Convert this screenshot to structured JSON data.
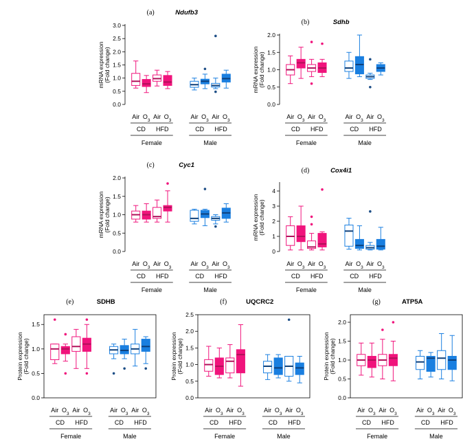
{
  "colors": {
    "female": "#f0147c",
    "male": "#1a7fe0",
    "outlier_male": "#1d4e86"
  },
  "labels": {
    "air": "Air",
    "o3": "O",
    "o3_sub": "3",
    "cd": "CD",
    "hfd": "HFD",
    "female": "Female",
    "male": "Male"
  },
  "chart_data": [
    {
      "type": "box",
      "id": "a",
      "letter": "(a)",
      "title": "Ndufb3",
      "italic": true,
      "ylabel": [
        "mRNA expression",
        "(Fold change)"
      ],
      "ylim": [
        0,
        3.0
      ],
      "yticks": [
        "0.0",
        "0.5",
        "1.0",
        "1.5",
        "2.0",
        "2.5",
        "3.0"
      ],
      "categories": [
        "F CD Air",
        "F CD O3",
        "F HFD Air",
        "F HFD O3",
        "M CD Air",
        "M CD O3",
        "M HFD Air",
        "M HFD O3"
      ],
      "boxes": [
        {
          "min": 0.62,
          "q1": 0.72,
          "median": 0.88,
          "q3": 1.18,
          "max": 1.65,
          "outliers": []
        },
        {
          "min": 0.45,
          "q1": 0.68,
          "median": 0.78,
          "q3": 0.95,
          "max": 1.1,
          "outliers": []
        },
        {
          "min": 0.7,
          "q1": 0.88,
          "median": 0.98,
          "q3": 1.12,
          "max": 1.3,
          "outliers": []
        },
        {
          "min": 0.6,
          "q1": 0.72,
          "median": 0.85,
          "q3": 1.1,
          "max": 1.25,
          "outliers": []
        },
        {
          "min": 0.55,
          "q1": 0.65,
          "median": 0.75,
          "q3": 0.88,
          "max": 1.0,
          "outliers": []
        },
        {
          "min": 0.6,
          "q1": 0.78,
          "median": 0.88,
          "q3": 0.96,
          "max": 1.15,
          "outliers": [
            1.35
          ]
        },
        {
          "min": 0.6,
          "q1": 0.66,
          "median": 0.72,
          "q3": 0.8,
          "max": 1.0,
          "outliers": [
            0.48,
            2.6
          ]
        },
        {
          "min": 0.62,
          "q1": 0.85,
          "median": 0.98,
          "q3": 1.15,
          "max": 1.3,
          "outliers": []
        }
      ]
    },
    {
      "type": "box",
      "id": "b",
      "letter": "(b)",
      "title": "Sdhb",
      "italic": true,
      "ylabel": [
        "mRNA expression",
        "(Fold change)"
      ],
      "ylim": [
        0,
        2.0
      ],
      "yticks": [
        "0.0",
        "0.5",
        "1.0",
        "1.5",
        "2.0"
      ],
      "categories": [
        "F CD Air",
        "F CD O3",
        "F HFD Air",
        "F HFD O3",
        "M CD Air",
        "M CD O3",
        "M HFD Air",
        "M HFD O3"
      ],
      "boxes": [
        {
          "min": 0.6,
          "q1": 0.85,
          "median": 1.0,
          "q3": 1.15,
          "max": 1.4,
          "outliers": []
        },
        {
          "min": 0.75,
          "q1": 1.05,
          "median": 1.2,
          "q3": 1.3,
          "max": 1.65,
          "outliers": []
        },
        {
          "min": 0.8,
          "q1": 0.95,
          "median": 1.05,
          "q3": 1.15,
          "max": 1.3,
          "outliers": [
            0.6,
            1.8
          ]
        },
        {
          "min": 0.8,
          "q1": 0.92,
          "median": 1.05,
          "q3": 1.2,
          "max": 1.3,
          "outliers": [
            1.75
          ]
        },
        {
          "min": 0.75,
          "q1": 0.95,
          "median": 1.05,
          "q3": 1.25,
          "max": 1.5,
          "outliers": []
        },
        {
          "min": 0.8,
          "q1": 0.88,
          "median": 1.15,
          "q3": 1.38,
          "max": 2.0,
          "outliers": []
        },
        {
          "min": 0.72,
          "q1": 0.75,
          "median": 0.8,
          "q3": 0.85,
          "max": 0.9,
          "outliers": [
            0.5,
            1.3
          ]
        },
        {
          "min": 0.85,
          "q1": 0.95,
          "median": 1.05,
          "q3": 1.15,
          "max": 1.2,
          "outliers": []
        }
      ]
    },
    {
      "type": "box",
      "id": "c",
      "letter": "(c)",
      "title": "Cyc1",
      "italic": true,
      "ylabel": [
        "mRNA expression",
        "(Fold change)"
      ],
      "ylim": [
        0,
        2.0
      ],
      "yticks": [
        "0.0",
        "0.5",
        "1.0",
        "1.5",
        "2.0"
      ],
      "categories": [
        "F CD Air",
        "F CD O3",
        "F HFD Air",
        "F HFD O3",
        "M CD Air",
        "M CD O3",
        "M HFD Air",
        "M HFD O3"
      ],
      "boxes": [
        {
          "min": 0.8,
          "q1": 0.88,
          "median": 1.0,
          "q3": 1.1,
          "max": 1.25,
          "outliers": []
        },
        {
          "min": 0.8,
          "q1": 0.88,
          "median": 1.0,
          "q3": 1.1,
          "max": 1.3,
          "outliers": []
        },
        {
          "min": 0.8,
          "q1": 0.9,
          "median": 0.95,
          "q3": 1.2,
          "max": 1.4,
          "outliers": []
        },
        {
          "min": 0.8,
          "q1": 1.1,
          "median": 1.2,
          "q3": 1.25,
          "max": 1.65,
          "outliers": [
            1.85
          ]
        },
        {
          "min": 0.75,
          "q1": 0.82,
          "median": 0.9,
          "q3": 1.12,
          "max": 1.15,
          "outliers": []
        },
        {
          "min": 0.7,
          "q1": 0.92,
          "median": 1.02,
          "q3": 1.12,
          "max": 1.15,
          "outliers": [
            1.7
          ]
        },
        {
          "min": 0.75,
          "q1": 0.85,
          "median": 0.9,
          "q3": 0.95,
          "max": 1.0,
          "outliers": [
            0.68
          ]
        },
        {
          "min": 0.8,
          "q1": 0.9,
          "median": 1.05,
          "q3": 1.18,
          "max": 1.3,
          "outliers": []
        }
      ]
    },
    {
      "type": "box",
      "id": "d",
      "letter": "(d)",
      "title": "Cox4i1",
      "italic": true,
      "ylabel": [
        "mRNA expression",
        "(Fold change)"
      ],
      "ylim": [
        0,
        4.5
      ],
      "yticks": [
        "0",
        "1",
        "2",
        "3",
        "4"
      ],
      "categories": [
        "F CD Air",
        "F CD O3",
        "F HFD Air",
        "F HFD O3",
        "M CD Air",
        "M CD O3",
        "M HFD Air",
        "M HFD O3"
      ],
      "boxes": [
        {
          "min": 0.1,
          "q1": 0.4,
          "median": 1.0,
          "q3": 1.7,
          "max": 2.3,
          "outliers": []
        },
        {
          "min": 0.1,
          "q1": 0.65,
          "median": 1.0,
          "q3": 1.7,
          "max": 3.0,
          "outliers": []
        },
        {
          "min": 0.1,
          "q1": 0.2,
          "median": 0.3,
          "q3": 0.7,
          "max": 1.2,
          "outliers": [
            1.8,
            2.3
          ]
        },
        {
          "min": 0.1,
          "q1": 0.3,
          "median": 0.5,
          "q3": 1.2,
          "max": 1.3,
          "outliers": [
            4.1
          ]
        },
        {
          "min": 0.15,
          "q1": 0.35,
          "median": 1.35,
          "q3": 1.75,
          "max": 2.2,
          "outliers": []
        },
        {
          "min": 0.1,
          "q1": 0.2,
          "median": 0.4,
          "q3": 0.8,
          "max": 1.7,
          "outliers": []
        },
        {
          "min": 0.1,
          "q1": 0.15,
          "median": 0.25,
          "q3": 0.4,
          "max": 0.6,
          "outliers": [
            2.65
          ]
        },
        {
          "min": 0.1,
          "q1": 0.15,
          "median": 0.35,
          "q3": 0.8,
          "max": 1.6,
          "outliers": []
        }
      ]
    },
    {
      "type": "box",
      "id": "e",
      "letter": "(e)",
      "title": "SDHB",
      "italic": false,
      "ylabel": [
        "Protein expression",
        "(Fold change)"
      ],
      "ylim": [
        0,
        1.7
      ],
      "yticks": [
        "0.0",
        "0.5",
        "1.0",
        "1.5"
      ],
      "categories": [
        "F CD Air",
        "F CD O3",
        "F HFD Air",
        "F HFD O3",
        "M CD Air",
        "M CD O3",
        "M HFD Air",
        "M HFD O3"
      ],
      "boxes": [
        {
          "min": 0.7,
          "q1": 0.78,
          "median": 1.0,
          "q3": 1.1,
          "max": 1.1,
          "outliers": [
            1.6
          ]
        },
        {
          "min": 0.75,
          "q1": 0.9,
          "median": 1.0,
          "q3": 1.05,
          "max": 1.1,
          "outliers": [
            0.5,
            1.3
          ]
        },
        {
          "min": 0.6,
          "q1": 0.95,
          "median": 1.05,
          "q3": 1.25,
          "max": 1.4,
          "outliers": []
        },
        {
          "min": 0.6,
          "q1": 0.95,
          "median": 1.1,
          "q3": 1.22,
          "max": 1.5,
          "outliers": [
            0.5,
            1.6
          ]
        },
        {
          "min": 0.8,
          "q1": 0.9,
          "median": 0.98,
          "q3": 1.05,
          "max": 1.1,
          "outliers": [
            0.5
          ]
        },
        {
          "min": 0.8,
          "q1": 0.9,
          "median": 0.97,
          "q3": 1.07,
          "max": 1.2,
          "outliers": [
            0.6
          ]
        },
        {
          "min": 0.65,
          "q1": 0.9,
          "median": 1.0,
          "q3": 1.1,
          "max": 1.4,
          "outliers": []
        },
        {
          "min": 0.7,
          "q1": 0.95,
          "median": 1.05,
          "q3": 1.2,
          "max": 1.25,
          "outliers": [
            0.6
          ]
        }
      ]
    },
    {
      "type": "box",
      "id": "f",
      "letter": "(f)",
      "title": "UQCRC2",
      "italic": false,
      "ylabel": [
        "Protein expression",
        "(Fold change)"
      ],
      "ylim": [
        0,
        2.5
      ],
      "yticks": [
        "0.0",
        "0.5",
        "1.0",
        "1.5",
        "2.0",
        "2.5"
      ],
      "categories": [
        "F CD Air",
        "F CD O3",
        "F HFD Air",
        "F HFD O3",
        "M CD Air",
        "M CD O3",
        "M HFD Air",
        "M HFD O3"
      ],
      "boxes": [
        {
          "min": 0.65,
          "q1": 0.8,
          "median": 1.0,
          "q3": 1.15,
          "max": 1.55,
          "outliers": []
        },
        {
          "min": 0.6,
          "q1": 0.7,
          "median": 0.95,
          "q3": 1.2,
          "max": 1.5,
          "outliers": []
        },
        {
          "min": 0.6,
          "q1": 0.75,
          "median": 1.1,
          "q3": 1.2,
          "max": 1.6,
          "outliers": []
        },
        {
          "min": 0.35,
          "q1": 0.75,
          "median": 1.3,
          "q3": 1.45,
          "max": 2.2,
          "outliers": []
        },
        {
          "min": 0.55,
          "q1": 0.75,
          "median": 0.95,
          "q3": 1.1,
          "max": 1.3,
          "outliers": []
        },
        {
          "min": 0.6,
          "q1": 0.7,
          "median": 0.9,
          "q3": 1.2,
          "max": 1.3,
          "outliers": []
        },
        {
          "min": 0.5,
          "q1": 0.65,
          "median": 0.95,
          "q3": 1.25,
          "max": 1.25,
          "outliers": [
            2.35
          ]
        },
        {
          "min": 0.45,
          "q1": 0.7,
          "median": 0.9,
          "q3": 1.05,
          "max": 1.25,
          "outliers": []
        }
      ]
    },
    {
      "type": "box",
      "id": "g",
      "letter": "(g)",
      "title": "ATP5A",
      "italic": false,
      "ylabel": [
        "Protein expression",
        "(Fold change)"
      ],
      "ylim": [
        0,
        2.2
      ],
      "yticks": [
        "0.0",
        "0.5",
        "1.0",
        "1.5",
        "2.0"
      ],
      "categories": [
        "F CD Air",
        "F CD O3",
        "F HFD Air",
        "F HFD O3",
        "M CD Air",
        "M CD O3",
        "M HFD Air",
        "M HFD O3"
      ],
      "boxes": [
        {
          "min": 0.6,
          "q1": 0.85,
          "median": 1.0,
          "q3": 1.15,
          "max": 1.45,
          "outliers": []
        },
        {
          "min": 0.55,
          "q1": 0.8,
          "median": 1.0,
          "q3": 1.1,
          "max": 1.45,
          "outliers": []
        },
        {
          "min": 0.5,
          "q1": 0.85,
          "median": 1.0,
          "q3": 1.15,
          "max": 1.55,
          "outliers": [
            1.8
          ]
        },
        {
          "min": 0.45,
          "q1": 0.85,
          "median": 1.05,
          "q3": 1.15,
          "max": 1.5,
          "outliers": [
            2.0
          ]
        },
        {
          "min": 0.5,
          "q1": 0.75,
          "median": 0.95,
          "q3": 1.1,
          "max": 1.25,
          "outliers": []
        },
        {
          "min": 0.55,
          "q1": 0.7,
          "median": 1.05,
          "q3": 1.1,
          "max": 1.2,
          "outliers": []
        },
        {
          "min": 0.5,
          "q1": 0.75,
          "median": 1.05,
          "q3": 1.25,
          "max": 1.7,
          "outliers": []
        },
        {
          "min": 0.45,
          "q1": 0.75,
          "median": 1.0,
          "q3": 1.1,
          "max": 1.65,
          "outliers": []
        }
      ]
    }
  ]
}
